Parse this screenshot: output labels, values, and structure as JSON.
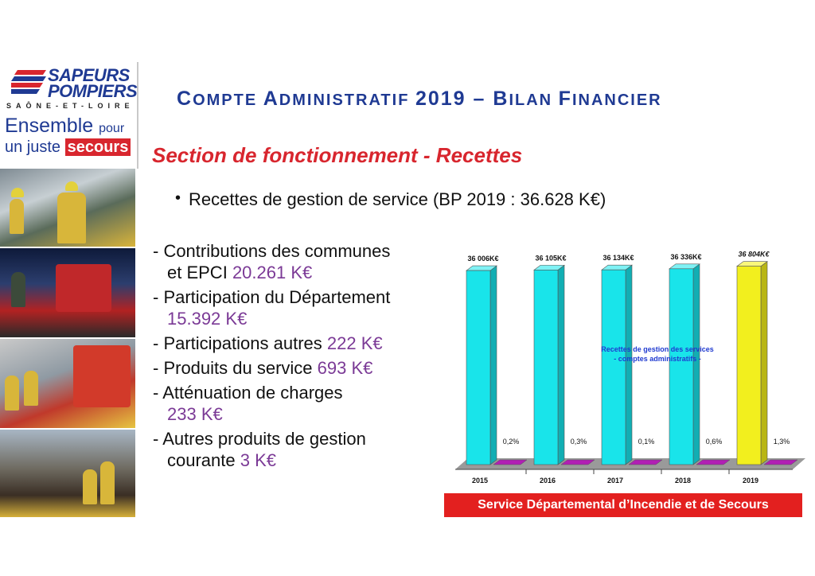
{
  "logo": {
    "line1": "SAPEURS",
    "line2": "POMPIERS",
    "region": "SAÔNE-ET-LOIRE",
    "slogan_line1_a": "Ensemble",
    "slogan_line1_b": "pour",
    "slogan_line2_a": "un juste",
    "slogan_line2_b": "secours",
    "colors": {
      "blue": "#1f3a93",
      "red": "#d8262e"
    }
  },
  "title_parts": {
    "p1_cap": "C",
    "p1_rest": "OMPTE ",
    "p2_cap": "A",
    "p2_rest": "DMINISTRATIF ",
    "year": "2019 – ",
    "p3_cap": "B",
    "p3_rest": "ILAN ",
    "p4_cap": "F",
    "p4_rest": "INANCIER"
  },
  "subtitle": "Section de fonctionnement - Recettes",
  "bullet": "Recettes de gestion de service (BP 2019 : 36.628 K€)",
  "items": [
    {
      "text1": "- Contributions des communes",
      "text2": "et EPCI",
      "value": "20.261 K€"
    },
    {
      "text1": "- Participation du Département",
      "text2": "",
      "value": "15.392 K€"
    },
    {
      "text1": "- Participations autres",
      "text2": null,
      "value": "222 K€"
    },
    {
      "text1": "- Produits du service",
      "text2": null,
      "value": "693 K€"
    },
    {
      "text1": "- Atténuation de charges",
      "text2": "",
      "value": "233 K€"
    },
    {
      "text1": "- Autres produits de gestion",
      "text2": "courante",
      "value": "3 K€"
    }
  ],
  "chart_data": {
    "type": "bar",
    "categories": [
      "2015",
      "2016",
      "2017",
      "2018",
      "2019"
    ],
    "series": [
      {
        "values": [
          36006,
          36105,
          36134,
          36336,
          36804
        ],
        "labels": [
          "36 006K€",
          "36 105K€",
          "36 134K€",
          "36 336K€",
          "36 804K€"
        ]
      },
      {
        "values": [
          0.2,
          0.3,
          0.1,
          0.6,
          1.3
        ],
        "labels": [
          "0,2%",
          "0,3%",
          "0,1%",
          "0,6%",
          "1,3%"
        ]
      }
    ],
    "annotation_line1": "Recettes de gestion des services",
    "annotation_line2": "- comptes administratifs -",
    "colors": {
      "bar": "#19e4ea",
      "bar_highlight": "#f2ef1e",
      "growth": "#b11fb4",
      "floor": "#9a9a9a"
    }
  },
  "banner": "Service Départemental d’Incendie et de Secours"
}
